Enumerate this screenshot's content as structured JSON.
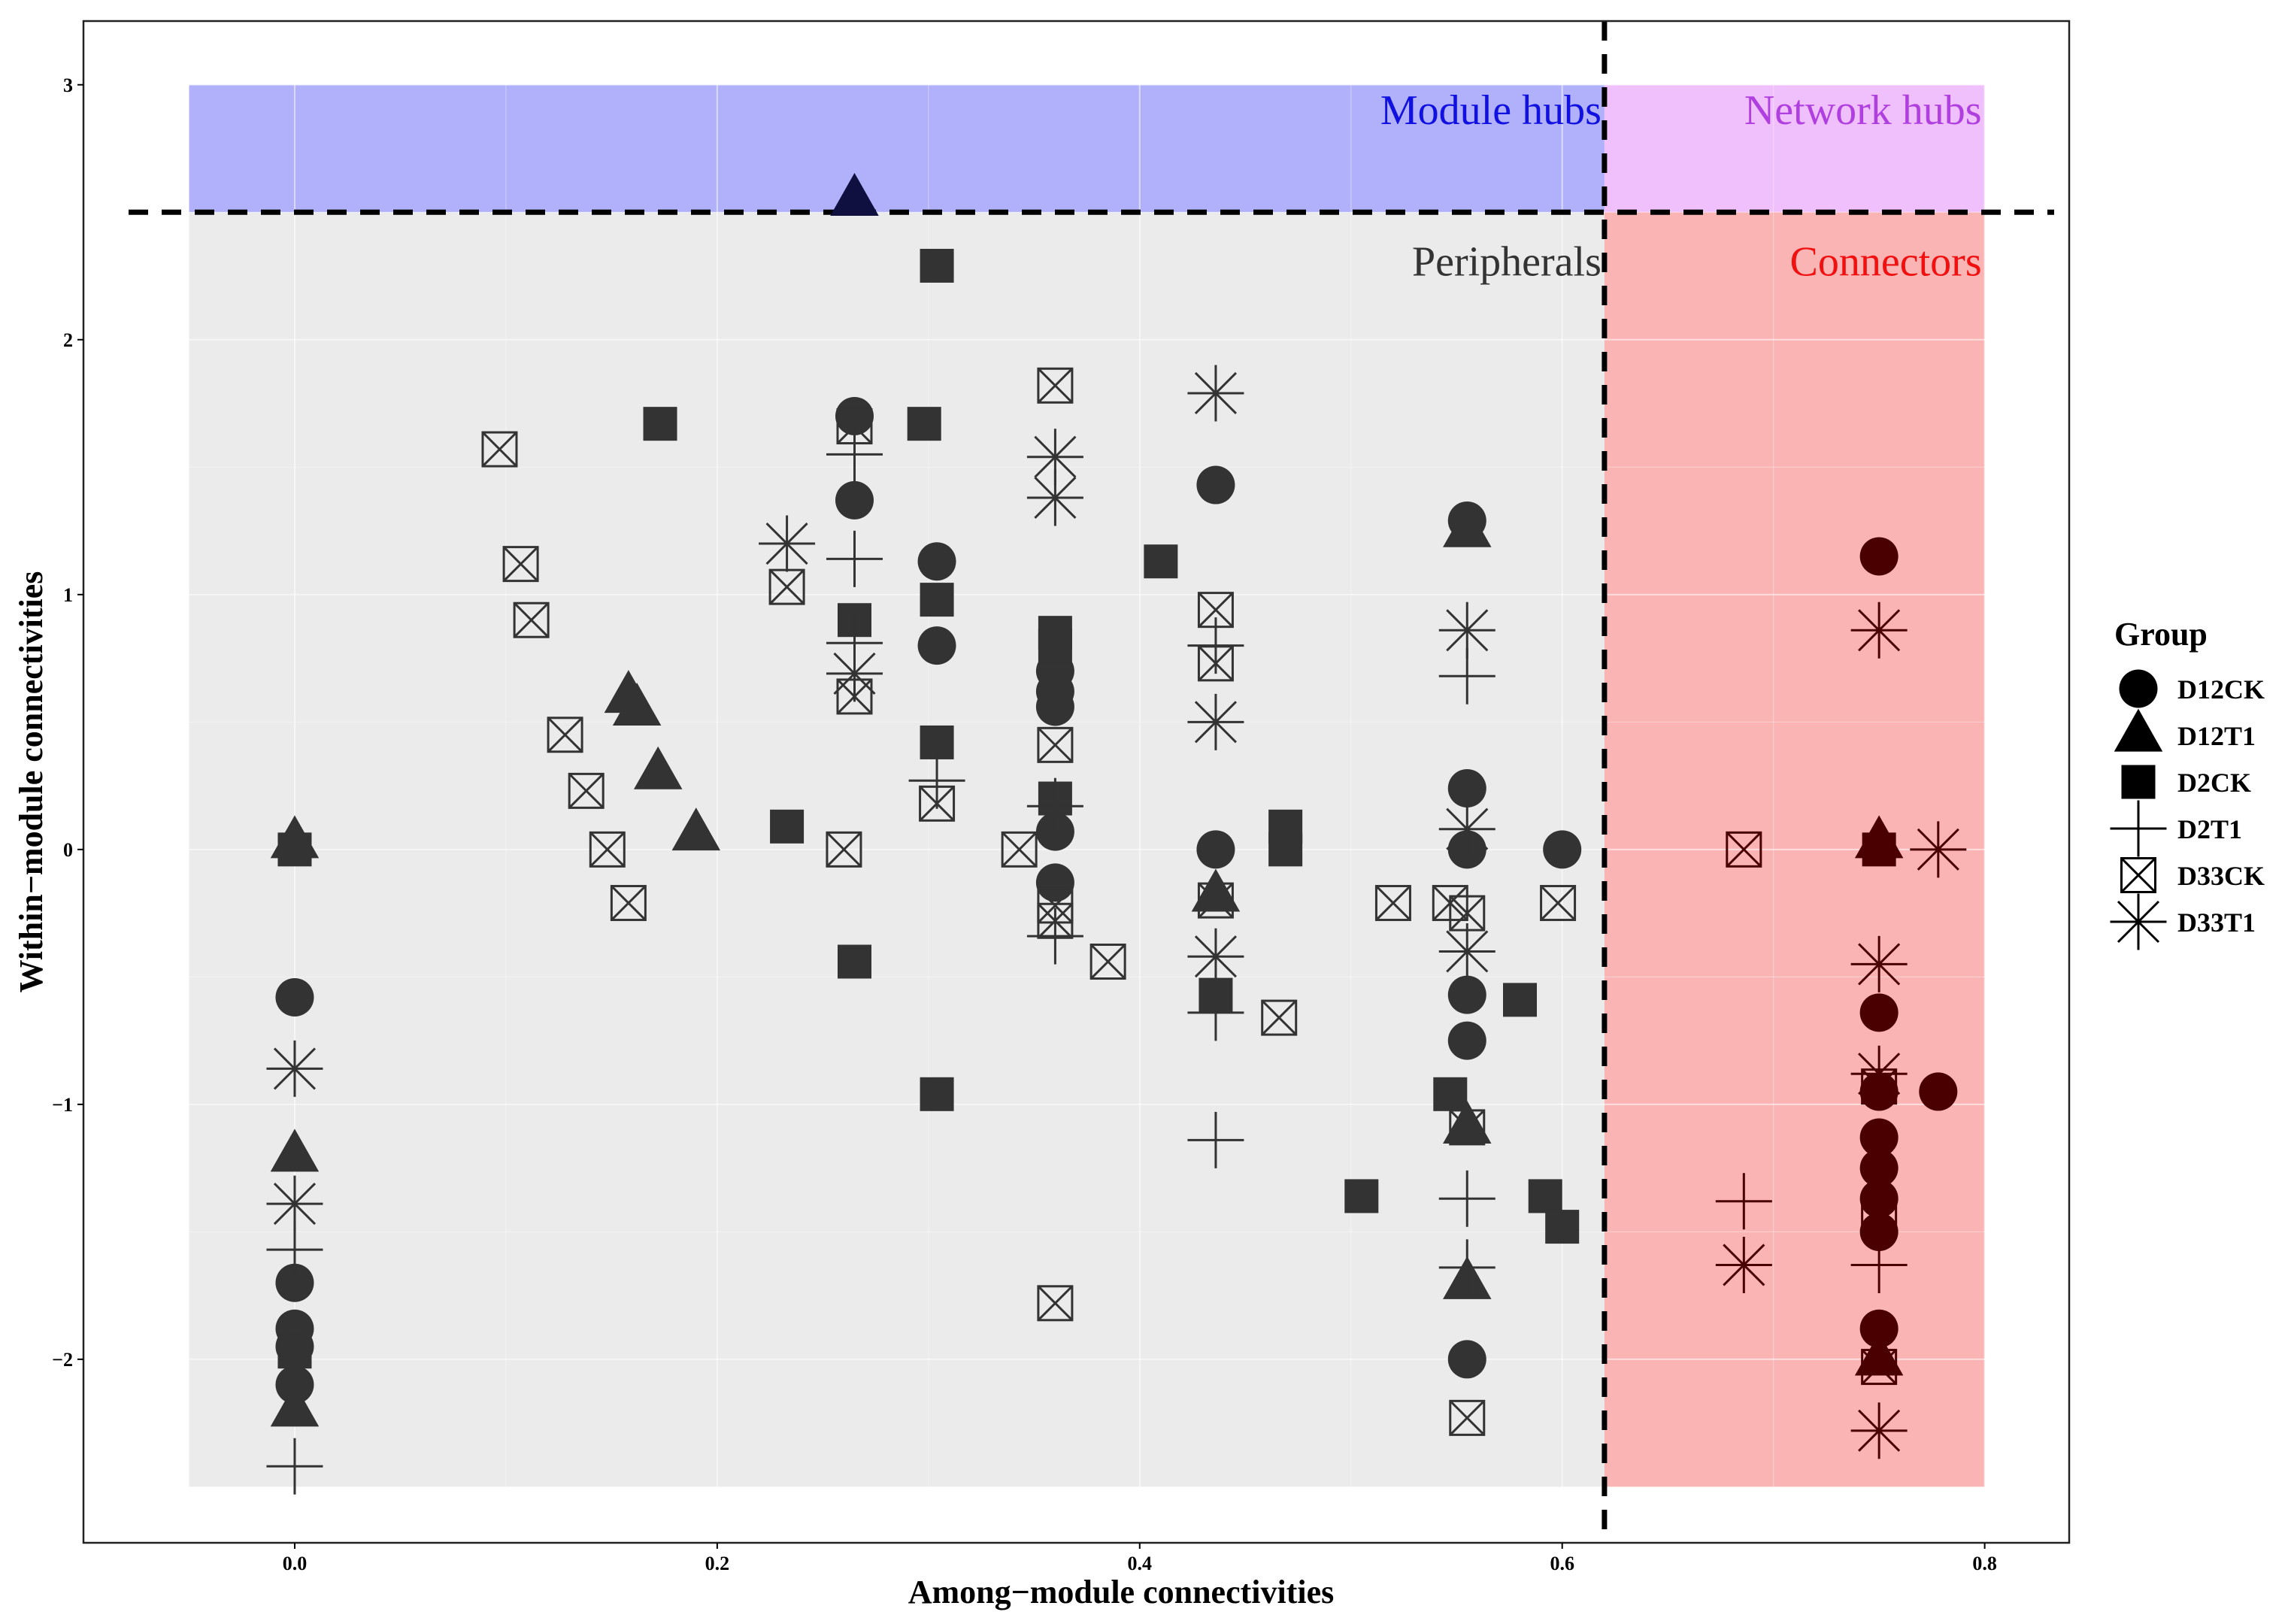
{
  "chart_data": {
    "type": "scatter",
    "xlabel": "Among−module connectivities",
    "ylabel": "Within−module connectivities",
    "xlim": [
      -0.1,
      0.84
    ],
    "ylim": [
      -2.72,
      3.25
    ],
    "x_ticks": [
      0.0,
      0.2,
      0.4,
      0.6,
      0.8
    ],
    "x_tick_labels": [
      "0.0",
      "0.2",
      "0.4",
      "0.6",
      "0.8"
    ],
    "y_ticks": [
      -2,
      -1,
      0,
      1,
      2,
      3
    ],
    "y_tick_labels": [
      "−2",
      "−1",
      "0",
      "1",
      "2",
      "3"
    ],
    "grid": true,
    "thresholds": {
      "x": 0.62,
      "y": 2.5
    },
    "regions": [
      {
        "label": "Module hubs",
        "x": [
          -0.05,
          0.62
        ],
        "y": [
          2.5,
          3.0
        ],
        "fill": "#b0b0fb",
        "text_color": "#1010e0"
      },
      {
        "label": "Network hubs",
        "x": [
          0.62,
          0.8
        ],
        "y": [
          2.5,
          3.0
        ],
        "fill": "#efc0fb",
        "text_color": "#b03fe0"
      },
      {
        "label": "Peripherals",
        "x": [
          -0.05,
          0.62
        ],
        "y": [
          -2.5,
          2.5
        ],
        "fill": "#ebebeb",
        "text_color": "#333333"
      },
      {
        "label": "Connectors",
        "x": [
          0.62,
          0.8
        ],
        "y": [
          -2.5,
          2.5
        ],
        "fill": "#fbb4b4",
        "text_color": "#f01010"
      }
    ],
    "legend": {
      "title": "Group",
      "position": "right"
    },
    "series": [
      {
        "name": "D12CK",
        "marker": "circle",
        "points": [
          [
            0,
            -0.58
          ],
          [
            0,
            -1.7
          ],
          [
            0,
            -1.88
          ],
          [
            0,
            -1.95
          ],
          [
            0,
            -2.1
          ],
          [
            0.265,
            1.7
          ],
          [
            0.265,
            1.37
          ],
          [
            0.304,
            1.13
          ],
          [
            0.304,
            0.8
          ],
          [
            0.36,
            0.7
          ],
          [
            0.36,
            0.62
          ],
          [
            0.36,
            0.56
          ],
          [
            0.36,
            0.07
          ],
          [
            0.36,
            -0.13
          ],
          [
            0.436,
            1.43
          ],
          [
            0.436,
            0
          ],
          [
            0.555,
            1.29
          ],
          [
            0.555,
            0.24
          ],
          [
            0.555,
            0
          ],
          [
            0.555,
            -0.57
          ],
          [
            0.555,
            -0.75
          ],
          [
            0.555,
            -2.0
          ],
          [
            0.6,
            0
          ],
          [
            0.75,
            1.15
          ],
          [
            0.75,
            -0.64
          ],
          [
            0.75,
            -0.95
          ],
          [
            0.75,
            -1.13
          ],
          [
            0.75,
            -1.25
          ],
          [
            0.75,
            -1.37
          ],
          [
            0.75,
            -1.5
          ],
          [
            0.75,
            -1.88
          ],
          [
            0.778,
            -0.95
          ]
        ]
      },
      {
        "name": "D12T1",
        "marker": "triangle",
        "points": [
          [
            0,
            0.03
          ],
          [
            0,
            -1.2
          ],
          [
            0,
            -2.2
          ],
          [
            0.158,
            0.6
          ],
          [
            0.162,
            0.55
          ],
          [
            0.172,
            0.3
          ],
          [
            0.19,
            0.06
          ],
          [
            0.265,
            2.55
          ],
          [
            0.436,
            -0.18
          ],
          [
            0.555,
            1.25
          ],
          [
            0.555,
            -1.09
          ],
          [
            0.555,
            -1.7
          ],
          [
            0.75,
            0.03
          ],
          [
            0.75,
            -2.0
          ]
        ]
      },
      {
        "name": "D2CK",
        "marker": "square",
        "points": [
          [
            0,
            0
          ],
          [
            0,
            -1.97
          ],
          [
            0.173,
            1.67
          ],
          [
            0.233,
            0.09
          ],
          [
            0.265,
            0.9
          ],
          [
            0.265,
            -0.44
          ],
          [
            0.298,
            1.67
          ],
          [
            0.304,
            2.29
          ],
          [
            0.304,
            0.98
          ],
          [
            0.304,
            0.42
          ],
          [
            0.304,
            -0.96
          ],
          [
            0.36,
            0.85
          ],
          [
            0.36,
            0.8
          ],
          [
            0.36,
            0.2
          ],
          [
            0.41,
            1.13
          ],
          [
            0.436,
            -0.57
          ],
          [
            0.469,
            0.09
          ],
          [
            0.469,
            0
          ],
          [
            0.505,
            -1.36
          ],
          [
            0.547,
            -0.96
          ],
          [
            0.58,
            -0.59
          ],
          [
            0.592,
            -1.36
          ],
          [
            0.6,
            -1.48
          ],
          [
            0.75,
            0
          ]
        ]
      },
      {
        "name": "D2T1",
        "marker": "plus",
        "points": [
          [
            0,
            -1.57
          ],
          [
            0,
            -2.42
          ],
          [
            0.265,
            1.55
          ],
          [
            0.265,
            1.14
          ],
          [
            0.265,
            0.81
          ],
          [
            0.304,
            0.27
          ],
          [
            0.36,
            0.17
          ],
          [
            0.36,
            -0.34
          ],
          [
            0.436,
            0.8
          ],
          [
            0.436,
            -0.64
          ],
          [
            0.436,
            -1.14
          ],
          [
            0.555,
            0.68
          ],
          [
            0.555,
            -1.37
          ],
          [
            0.555,
            -1.64
          ],
          [
            0.686,
            -1.38
          ],
          [
            0.75,
            -1.63
          ]
        ]
      },
      {
        "name": "D33CK",
        "marker": "boxx",
        "points": [
          [
            0.097,
            1.57
          ],
          [
            0.107,
            1.12
          ],
          [
            0.112,
            0.9
          ],
          [
            0.128,
            0.45
          ],
          [
            0.138,
            0.23
          ],
          [
            0.148,
            0
          ],
          [
            0.158,
            -0.21
          ],
          [
            0.233,
            1.03
          ],
          [
            0.26,
            0
          ],
          [
            0.265,
            1.66
          ],
          [
            0.265,
            0.6
          ],
          [
            0.304,
            0.18
          ],
          [
            0.343,
            0
          ],
          [
            0.36,
            1.82
          ],
          [
            0.36,
            0.41
          ],
          [
            0.36,
            -0.22
          ],
          [
            0.36,
            -0.28
          ],
          [
            0.36,
            -1.78
          ],
          [
            0.385,
            -0.44
          ],
          [
            0.436,
            0.94
          ],
          [
            0.436,
            0.73
          ],
          [
            0.436,
            -0.2
          ],
          [
            0.466,
            -0.66
          ],
          [
            0.52,
            -0.21
          ],
          [
            0.547,
            -0.21
          ],
          [
            0.555,
            -0.25
          ],
          [
            0.555,
            -1.09
          ],
          [
            0.555,
            -2.23
          ],
          [
            0.598,
            -0.21
          ],
          [
            0.686,
            0
          ],
          [
            0.75,
            -0.93
          ],
          [
            0.75,
            -1.43
          ],
          [
            0.75,
            -2.03
          ]
        ]
      },
      {
        "name": "D33T1",
        "marker": "asterisk",
        "points": [
          [
            0,
            -0.86
          ],
          [
            0,
            -1.39
          ],
          [
            0.233,
            1.2
          ],
          [
            0.265,
            0.69
          ],
          [
            0.36,
            1.54
          ],
          [
            0.36,
            1.38
          ],
          [
            0.436,
            1.79
          ],
          [
            0.436,
            0.5
          ],
          [
            0.436,
            -0.42
          ],
          [
            0.555,
            0.86
          ],
          [
            0.555,
            0.08
          ],
          [
            0.555,
            -0.4
          ],
          [
            0.686,
            -1.63
          ],
          [
            0.75,
            0.86
          ],
          [
            0.75,
            -0.45
          ],
          [
            0.75,
            -0.88
          ],
          [
            0.75,
            -2.28
          ],
          [
            0.778,
            0
          ]
        ]
      }
    ]
  }
}
